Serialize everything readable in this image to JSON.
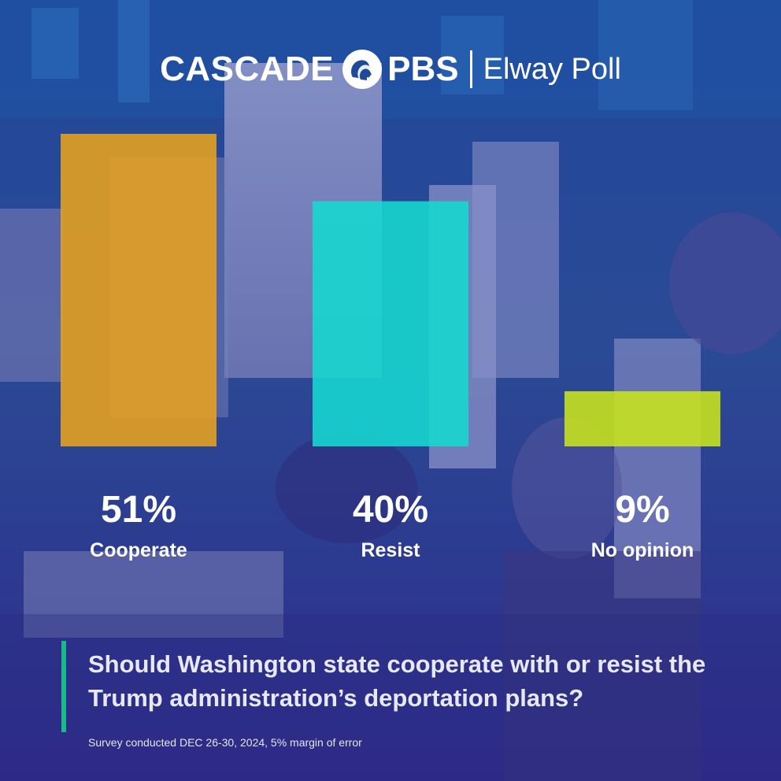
{
  "header": {
    "brand": "CASCADE",
    "network": "PBS",
    "partner": "Elway Poll",
    "brand_color": "#ffffff",
    "logo_icon": "pbs-head-icon"
  },
  "chart_data": {
    "type": "bar",
    "categories": [
      "Cooperate",
      "Resist",
      "No opinion"
    ],
    "values": [
      51,
      40,
      9
    ],
    "value_labels": [
      "51%",
      "40%",
      "9%"
    ],
    "colors": [
      "#e8a21e",
      "#16d9d0",
      "#c9e51b"
    ],
    "ylim": [
      0,
      51
    ],
    "grid": false,
    "legend": "none"
  },
  "question": "Should Washington state cooperate with or resist the Trump administration’s deportation plans?",
  "footnote": "Survey conducted DEC 26-30, 2024, 5% margin of error",
  "colors": {
    "background_top": "#1f3f8a",
    "background_bottom": "#2a2a86",
    "accent_bar": "#19b98a"
  }
}
